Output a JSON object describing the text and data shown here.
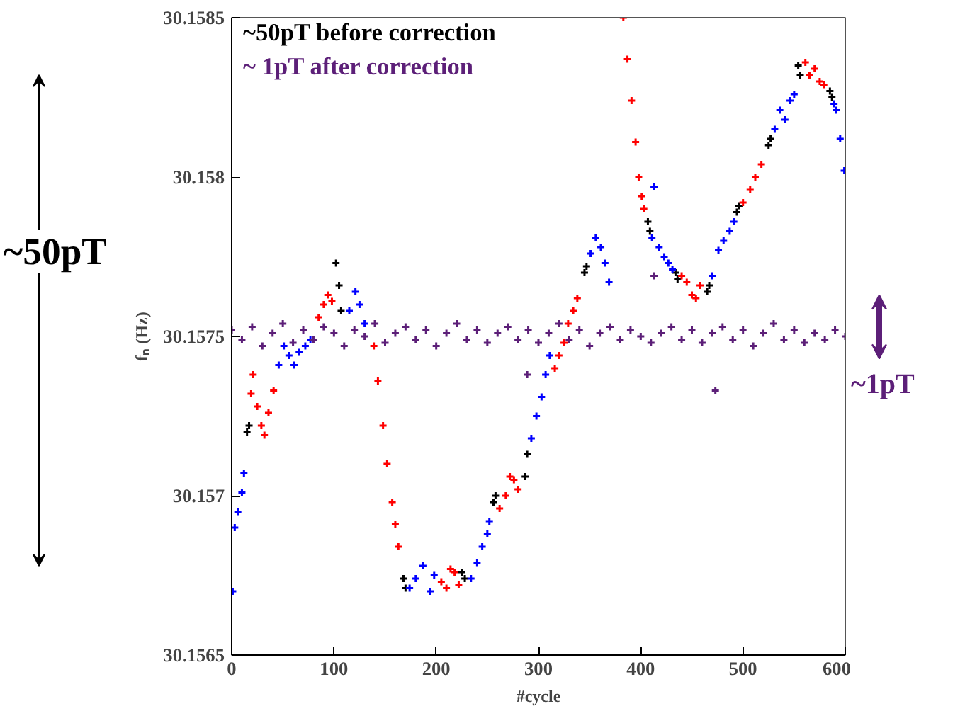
{
  "chart_data": {
    "type": "scatter",
    "xlabel": "#cycle",
    "ylabel": "fₙ (Hz)",
    "xlim": [
      0,
      600
    ],
    "ylim": [
      30.1565,
      30.1585
    ],
    "xticks": [
      0,
      100,
      200,
      300,
      400,
      500,
      600
    ],
    "yticks": [
      30.1565,
      30.157,
      30.1575,
      30.158,
      30.1585
    ],
    "marker": "cross",
    "grid": false,
    "annotations": [
      "~50pT before correction",
      "~ 1pT after correction",
      "~50pT",
      "~1pT"
    ],
    "series": [
      {
        "color": "#000000",
        "x": [
          15,
          17,
          102,
          105,
          107,
          168,
          170,
          225,
          228,
          256,
          258,
          287,
          289,
          345,
          347,
          407,
          409,
          434,
          436,
          465,
          467,
          494,
          496,
          525,
          527,
          554,
          556,
          585,
          587
        ],
        "values": [
          30.1572,
          30.15722,
          30.15773,
          30.15766,
          30.15758,
          30.15674,
          30.15671,
          30.15676,
          30.15674,
          30.15698,
          30.157,
          30.15706,
          30.15713,
          30.1577,
          30.15772,
          30.15786,
          30.15783,
          30.1577,
          30.15768,
          30.15764,
          30.15766,
          30.15789,
          30.15791,
          30.1581,
          30.15812,
          30.15835,
          30.15832,
          30.15827,
          30.15825
        ]
      },
      {
        "color": "#ff0000",
        "x": [
          19,
          21,
          25,
          29,
          32,
          36,
          41,
          85,
          90,
          94,
          98,
          139,
          143,
          148,
          152,
          157,
          160,
          163,
          205,
          210,
          214,
          218,
          222,
          262,
          268,
          272,
          276,
          280,
          316,
          320,
          325,
          329,
          334,
          338,
          383,
          387,
          391,
          395,
          398,
          401,
          403,
          440,
          445,
          450,
          454,
          458,
          500,
          507,
          512,
          518,
          561,
          565,
          570,
          575,
          579
        ],
        "values": [
          30.15732,
          30.15738,
          30.15728,
          30.15722,
          30.15719,
          30.15726,
          30.15733,
          30.15756,
          30.1576,
          30.15763,
          30.15761,
          30.15747,
          30.15736,
          30.15722,
          30.1571,
          30.15698,
          30.15691,
          30.15684,
          30.15673,
          30.15671,
          30.15677,
          30.15676,
          30.15672,
          30.15696,
          30.157,
          30.15706,
          30.15705,
          30.15702,
          30.1574,
          30.15744,
          30.15748,
          30.15754,
          30.15758,
          30.15762,
          30.1585,
          30.15837,
          30.15824,
          30.15811,
          30.158,
          30.15794,
          30.1579,
          30.15769,
          30.15767,
          30.15763,
          30.15762,
          30.15766,
          30.15792,
          30.15796,
          30.158,
          30.15804,
          30.15836,
          30.15832,
          30.15834,
          30.1583,
          30.15829
        ]
      },
      {
        "color": "#0000ff",
        "x": [
          1,
          3,
          6,
          10,
          12,
          46,
          51,
          56,
          61,
          66,
          72,
          77,
          115,
          121,
          125,
          130,
          174,
          180,
          187,
          194,
          198,
          234,
          240,
          245,
          250,
          252,
          293,
          298,
          303,
          307,
          311,
          351,
          356,
          361,
          365,
          369,
          411,
          413,
          418,
          423,
          427,
          431,
          470,
          476,
          481,
          487,
          491,
          531,
          536,
          541,
          546,
          550,
          589,
          591,
          595,
          599
        ],
        "values": [
          30.1567,
          30.1569,
          30.15695,
          30.15701,
          30.15707,
          30.15741,
          30.15747,
          30.15744,
          30.15741,
          30.15745,
          30.15747,
          30.15749,
          30.15758,
          30.15764,
          30.1576,
          30.15754,
          30.15671,
          30.15674,
          30.15678,
          30.1567,
          30.15675,
          30.15674,
          30.15679,
          30.15684,
          30.15688,
          30.15692,
          30.15718,
          30.15725,
          30.15731,
          30.15738,
          30.15744,
          30.15776,
          30.15781,
          30.15778,
          30.15773,
          30.15767,
          30.15781,
          30.15797,
          30.15778,
          30.15775,
          30.15773,
          30.15771,
          30.15769,
          30.15777,
          30.1578,
          30.15783,
          30.15786,
          30.15815,
          30.15821,
          30.15818,
          30.15824,
          30.15826,
          30.15823,
          30.15821,
          30.15812,
          30.15802
        ]
      },
      {
        "color": "#5c1f78",
        "x": [
          0,
          10,
          20,
          30,
          40,
          50,
          60,
          70,
          80,
          90,
          100,
          110,
          120,
          130,
          140,
          150,
          160,
          170,
          180,
          190,
          200,
          210,
          220,
          230,
          240,
          250,
          260,
          270,
          280,
          289,
          290,
          300,
          310,
          320,
          330,
          340,
          350,
          360,
          370,
          380,
          390,
          400,
          410,
          413,
          420,
          430,
          440,
          450,
          460,
          470,
          473,
          480,
          490,
          500,
          510,
          520,
          530,
          540,
          550,
          560,
          570,
          580,
          590,
          600
        ],
        "values": [
          30.15752,
          30.15749,
          30.15753,
          30.15747,
          30.15751,
          30.15754,
          30.15748,
          30.15752,
          30.15749,
          30.15753,
          30.15751,
          30.15747,
          30.15752,
          30.1575,
          30.15754,
          30.15748,
          30.15751,
          30.15753,
          30.15749,
          30.15752,
          30.15747,
          30.15751,
          30.15754,
          30.15749,
          30.15752,
          30.15748,
          30.15751,
          30.15753,
          30.15749,
          30.15738,
          30.15752,
          30.15748,
          30.15751,
          30.15754,
          30.15749,
          30.15752,
          30.15747,
          30.15751,
          30.15753,
          30.15749,
          30.15752,
          30.1575,
          30.15748,
          30.15769,
          30.15751,
          30.15753,
          30.15749,
          30.15752,
          30.15748,
          30.15751,
          30.15733,
          30.15753,
          30.15749,
          30.15752,
          30.15747,
          30.15751,
          30.15754,
          30.15749,
          30.15752,
          30.15748,
          30.15751,
          30.15749,
          30.15752,
          30.1575
        ]
      }
    ]
  }
}
